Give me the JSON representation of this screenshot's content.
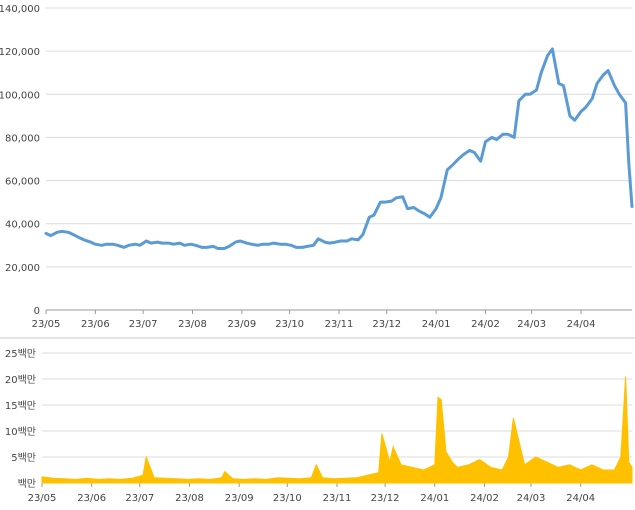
{
  "chart_data": [
    {
      "type": "line",
      "title": "",
      "xlabel": "",
      "ylabel": "",
      "ylim": [
        0,
        140000
      ],
      "grid": true,
      "color": "#5B9BD5",
      "x_ticks": [
        "23/05",
        "23/06",
        "23/07",
        "23/08",
        "23/09",
        "23/10",
        "23/11",
        "23/12",
        "24/01",
        "24/02",
        "24/03",
        "24/04"
      ],
      "y_ticks": [
        "0",
        "20,000",
        "40,000",
        "60,000",
        "80,000",
        "100,000",
        "120,000",
        "140,000"
      ],
      "x": [
        "2023-05-01",
        "2023-05-04",
        "2023-05-08",
        "2023-05-11",
        "2023-05-15",
        "2023-05-18",
        "2023-05-22",
        "2023-05-25",
        "2023-05-29",
        "2023-06-01",
        "2023-06-05",
        "2023-06-08",
        "2023-06-12",
        "2023-06-15",
        "2023-06-19",
        "2023-06-22",
        "2023-06-26",
        "2023-06-29",
        "2023-07-03",
        "2023-07-06",
        "2023-07-10",
        "2023-07-13",
        "2023-07-17",
        "2023-07-20",
        "2023-07-24",
        "2023-07-27",
        "2023-07-31",
        "2023-08-03",
        "2023-08-07",
        "2023-08-10",
        "2023-08-14",
        "2023-08-17",
        "2023-08-21",
        "2023-08-24",
        "2023-08-28",
        "2023-08-31",
        "2023-09-04",
        "2023-09-07",
        "2023-09-11",
        "2023-09-14",
        "2023-09-18",
        "2023-09-21",
        "2023-09-25",
        "2023-09-28",
        "2023-10-02",
        "2023-10-05",
        "2023-10-09",
        "2023-10-12",
        "2023-10-16",
        "2023-10-19",
        "2023-10-23",
        "2023-10-26",
        "2023-10-30",
        "2023-11-02",
        "2023-11-06",
        "2023-11-09",
        "2023-11-13",
        "2023-11-16",
        "2023-11-20",
        "2023-11-23",
        "2023-11-27",
        "2023-11-30",
        "2023-12-04",
        "2023-12-07",
        "2023-12-11",
        "2023-12-14",
        "2023-12-18",
        "2023-12-21",
        "2023-12-25",
        "2023-12-28",
        "2024-01-01",
        "2024-01-04",
        "2024-01-08",
        "2024-01-11",
        "2024-01-15",
        "2024-01-18",
        "2024-01-22",
        "2024-01-25",
        "2024-01-29",
        "2024-02-01",
        "2024-02-05",
        "2024-02-08",
        "2024-02-12",
        "2024-02-15",
        "2024-02-19",
        "2024-02-22",
        "2024-02-26",
        "2024-02-29",
        "2024-03-04",
        "2024-03-07",
        "2024-03-11",
        "2024-03-14",
        "2024-03-18",
        "2024-03-21",
        "2024-03-25",
        "2024-03-28",
        "2024-04-01",
        "2024-04-04",
        "2024-04-08",
        "2024-04-11",
        "2024-04-15",
        "2024-04-18",
        "2024-04-22",
        "2024-04-25",
        "2024-04-29",
        "2024-05-01",
        "2024-05-03"
      ],
      "values": [
        35500,
        34500,
        36000,
        36500,
        36000,
        35000,
        33500,
        32500,
        31500,
        30500,
        30000,
        30500,
        30500,
        30000,
        29000,
        30000,
        30500,
        30000,
        32000,
        31000,
        31500,
        31000,
        31000,
        30500,
        31000,
        30000,
        30500,
        30000,
        29000,
        29000,
        29500,
        28500,
        28500,
        29500,
        31500,
        32000,
        31000,
        30500,
        30000,
        30500,
        30500,
        31000,
        30500,
        30500,
        30000,
        29000,
        29000,
        29500,
        30000,
        33000,
        31500,
        31000,
        31500,
        32000,
        32000,
        33000,
        32500,
        35000,
        43000,
        44000,
        50000,
        50000,
        50500,
        52000,
        52500,
        47000,
        47500,
        46000,
        44500,
        43000,
        47000,
        52000,
        65000,
        67000,
        70000,
        72000,
        74000,
        73000,
        69000,
        78000,
        80000,
        79000,
        81500,
        81500,
        80000,
        97000,
        100000,
        100000,
        102000,
        110000,
        118000,
        121000,
        105000,
        104000,
        90000,
        88000,
        92000,
        94000,
        98000,
        105000,
        109000,
        111000,
        104000,
        100000,
        96000,
        68000,
        48000
      ],
      "extra": {
        "note": ""
      }
    },
    {
      "type": "area",
      "title": "",
      "xlabel": "",
      "ylabel": "",
      "ylim": [
        0,
        25000000
      ],
      "grid": true,
      "color": "#FFC000",
      "x_ticks": [
        "23/05",
        "23/06",
        "23/07",
        "23/08",
        "23/09",
        "23/10",
        "23/11",
        "23/12",
        "24/01",
        "24/02",
        "24/03",
        "24/04"
      ],
      "y_ticks": [
        "백만",
        "5백만",
        "10백만",
        "15백만",
        "20백만",
        "25백만"
      ],
      "x": [
        "2023-05-01",
        "2023-05-08",
        "2023-05-15",
        "2023-05-22",
        "2023-05-29",
        "2023-06-05",
        "2023-06-12",
        "2023-06-19",
        "2023-06-26",
        "2023-07-03",
        "2023-07-05",
        "2023-07-10",
        "2023-07-17",
        "2023-07-24",
        "2023-07-31",
        "2023-08-07",
        "2023-08-14",
        "2023-08-21",
        "2023-08-23",
        "2023-08-28",
        "2023-09-04",
        "2023-09-11",
        "2023-09-18",
        "2023-09-25",
        "2023-10-02",
        "2023-10-09",
        "2023-10-16",
        "2023-10-19",
        "2023-10-23",
        "2023-10-30",
        "2023-11-06",
        "2023-11-13",
        "2023-11-20",
        "2023-11-27",
        "2023-11-29",
        "2023-12-04",
        "2023-12-06",
        "2023-12-11",
        "2023-12-18",
        "2023-12-25",
        "2024-01-01",
        "2024-01-03",
        "2024-01-05",
        "2024-01-08",
        "2024-01-12",
        "2024-01-15",
        "2024-01-22",
        "2024-01-29",
        "2024-02-05",
        "2024-02-12",
        "2024-02-16",
        "2024-02-19",
        "2024-02-26",
        "2024-03-04",
        "2024-03-11",
        "2024-03-18",
        "2024-03-25",
        "2024-04-01",
        "2024-04-08",
        "2024-04-15",
        "2024-04-22",
        "2024-04-26",
        "2024-04-29",
        "2024-05-01",
        "2024-05-03"
      ],
      "values": [
        1200000,
        900000,
        800000,
        700000,
        900000,
        700000,
        800000,
        700000,
        900000,
        1500000,
        5000000,
        1000000,
        900000,
        800000,
        700000,
        800000,
        700000,
        1000000,
        2200000,
        800000,
        700000,
        800000,
        700000,
        1000000,
        900000,
        800000,
        1000000,
        3500000,
        1000000,
        800000,
        900000,
        1000000,
        1500000,
        2000000,
        9500000,
        4000000,
        7000000,
        3500000,
        3000000,
        2500000,
        3500000,
        16500000,
        16000000,
        6000000,
        4000000,
        3000000,
        3500000,
        4500000,
        3000000,
        2500000,
        5000000,
        12500000,
        3500000,
        5000000,
        4000000,
        3000000,
        3500000,
        2500000,
        3500000,
        2500000,
        2500000,
        5000000,
        20500000,
        4000000,
        3000000
      ],
      "extra": {
        "note": ""
      }
    }
  ]
}
